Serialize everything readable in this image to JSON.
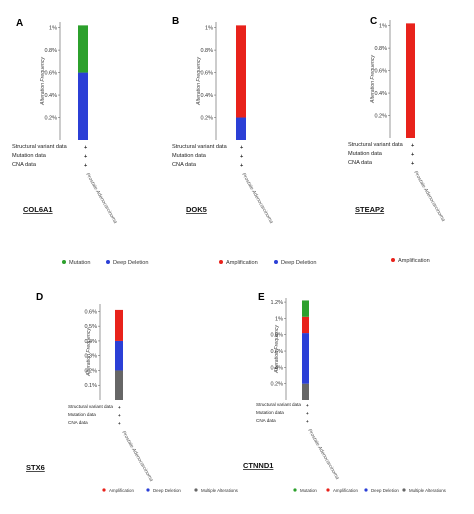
{
  "colors": {
    "mutation": "#2ca02c",
    "amplification": "#e8221b",
    "deep_deletion": "#2b3fd6",
    "multiple_alterations": "#666666",
    "axis": "#555555"
  },
  "shared": {
    "ylabel": "Alteration Frequency",
    "row_labels": [
      "Structural variant data",
      "Mutation data",
      "CNA data"
    ],
    "cancer_type": "Prostate Adenocarcinoma"
  },
  "chart_data": [
    {
      "panel": "A",
      "gene": "COL6A1",
      "type": "bar",
      "categories": [
        "Prostate Adenocarcinoma"
      ],
      "ylabel": "Alteration Frequency",
      "ylim": [
        0,
        1.05
      ],
      "yticks": [
        "0.2%",
        "0.4%",
        "0.6%",
        "0.8%",
        "1%"
      ],
      "ytick_values": [
        0.2,
        0.4,
        0.6,
        0.8,
        1.0
      ],
      "series": [
        {
          "name": "Deep Deletion",
          "values": [
            0.6
          ],
          "color_key": "deep_deletion"
        },
        {
          "name": "Mutation",
          "values": [
            0.42
          ],
          "color_key": "mutation"
        }
      ],
      "legend": [
        "Mutation",
        "Deep Deletion"
      ]
    },
    {
      "panel": "B",
      "gene": "DOK5",
      "type": "bar",
      "categories": [
        "Prostate Adenocarcinoma"
      ],
      "ylabel": "Alteration Frequency",
      "ylim": [
        0,
        1.05
      ],
      "yticks": [
        "0.2%",
        "0.4%",
        "0.6%",
        "0.8%",
        "1%"
      ],
      "ytick_values": [
        0.2,
        0.4,
        0.6,
        0.8,
        1.0
      ],
      "series": [
        {
          "name": "Deep Deletion",
          "values": [
            0.2
          ],
          "color_key": "deep_deletion"
        },
        {
          "name": "Amplification",
          "values": [
            0.82
          ],
          "color_key": "amplification"
        }
      ],
      "legend": [
        "Amplification",
        "Deep Deletion"
      ]
    },
    {
      "panel": "C",
      "gene": "STEAP2",
      "type": "bar",
      "categories": [
        "Prostate Adenocarcinoma"
      ],
      "ylabel": "Alteration Frequency",
      "ylim": [
        0,
        1.05
      ],
      "yticks": [
        "0.2%",
        "0.4%",
        "0.6%",
        "0.8%",
        "1%"
      ],
      "ytick_values": [
        0.2,
        0.4,
        0.6,
        0.8,
        1.0
      ],
      "series": [
        {
          "name": "Amplification",
          "values": [
            1.02
          ],
          "color_key": "amplification"
        }
      ],
      "legend": [
        "Amplification"
      ]
    },
    {
      "panel": "D",
      "gene": "STX6",
      "type": "bar",
      "categories": [
        "Prostate Adenocarcinoma"
      ],
      "ylabel": "Alteration Frequency",
      "ylim": [
        0,
        0.65
      ],
      "yticks": [
        "0.1%",
        "0.2%",
        "0.3%",
        "0.4%",
        "0.5%",
        "0.6%"
      ],
      "ytick_values": [
        0.1,
        0.2,
        0.3,
        0.4,
        0.5,
        0.6
      ],
      "series": [
        {
          "name": "Multiple Alterations",
          "values": [
            0.2
          ],
          "color_key": "multiple_alterations"
        },
        {
          "name": "Deep Deletion",
          "values": [
            0.2
          ],
          "color_key": "deep_deletion"
        },
        {
          "name": "Amplification",
          "values": [
            0.21
          ],
          "color_key": "amplification"
        }
      ],
      "legend": [
        "Amplification",
        "Deep Deletion",
        "Multiple Alterations"
      ]
    },
    {
      "panel": "E",
      "gene": "CTNND1",
      "type": "bar",
      "categories": [
        "Prostate Adenocarcinoma"
      ],
      "ylabel": "Alteration Frequency",
      "ylim": [
        0,
        1.25
      ],
      "yticks": [
        "0.2%",
        "0.4%",
        "0.6%",
        "0.8%",
        "1%",
        "1.2%"
      ],
      "ytick_values": [
        0.2,
        0.4,
        0.6,
        0.8,
        1.0,
        1.2
      ],
      "series": [
        {
          "name": "Multiple Alterations",
          "values": [
            0.2
          ],
          "color_key": "multiple_alterations"
        },
        {
          "name": "Deep Deletion",
          "values": [
            0.62
          ],
          "color_key": "deep_deletion"
        },
        {
          "name": "Amplification",
          "values": [
            0.2
          ],
          "color_key": "amplification"
        },
        {
          "name": "Mutation",
          "values": [
            0.2
          ],
          "color_key": "mutation"
        }
      ],
      "legend": [
        "Mutation",
        "Amplification",
        "Deep Deletion",
        "Multiple Alterations"
      ]
    }
  ]
}
